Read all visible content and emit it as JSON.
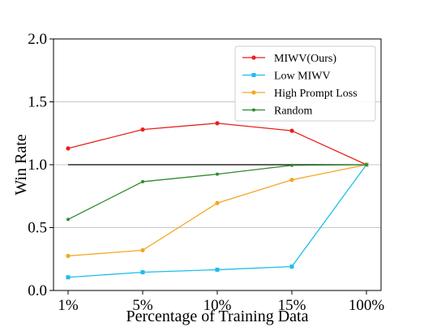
{
  "chart_data": {
    "type": "line",
    "categories": [
      "1%",
      "5%",
      "10%",
      "15%",
      "100%"
    ],
    "xlabel": "Percentage of Training Data",
    "ylabel": "Win Rate",
    "ylim": [
      0.0,
      2.0
    ],
    "yticks": [
      "0.0",
      "0.5",
      "1.0",
      "1.5",
      "2.0"
    ],
    "grid": "horizontal",
    "legend_position": "top-right",
    "reference_line": {
      "value": 1.0,
      "color": "#000000"
    },
    "series": [
      {
        "name": "MIWV(Ours)",
        "color": "#e8211c",
        "marker": "circle",
        "values": [
          1.13,
          1.28,
          1.33,
          1.27,
          1.0
        ]
      },
      {
        "name": "Low MIWV",
        "color": "#1cbfea",
        "marker": "square",
        "values": [
          0.105,
          0.145,
          0.165,
          0.19,
          1.0
        ]
      },
      {
        "name": "High Prompt Loss",
        "color": "#f5a623",
        "marker": "circle",
        "values": [
          0.275,
          0.32,
          0.695,
          0.88,
          1.0
        ]
      },
      {
        "name": "Random",
        "color": "#2e8b2e",
        "marker": "small-circle",
        "values": [
          0.565,
          0.865,
          0.925,
          0.995,
          1.0
        ]
      }
    ]
  }
}
